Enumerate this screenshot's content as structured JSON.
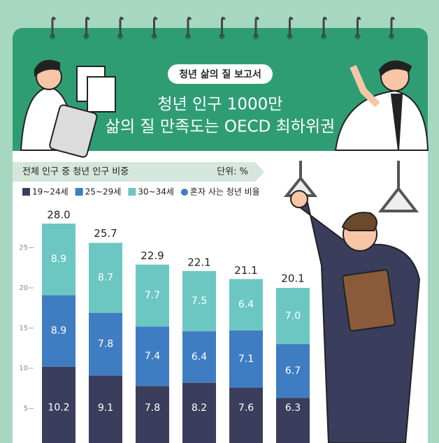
{
  "header": {
    "badge": "청년 삶의 질 보고서",
    "title_line1": "청년 인구 1000만",
    "title_line2": "삶의 질 만족도는 OECD 최하위권"
  },
  "chart_data": {
    "type": "stacked-bar",
    "subtitle": "전체 인구 중 청년 인구 비중",
    "unit": "단위: %",
    "series": [
      {
        "name": "19~24세",
        "color": "#3a3e5c",
        "values": [
          10.2,
          9.1,
          7.8,
          8.2,
          7.6,
          6.3
        ],
        "value_labels": [
          "10.2",
          "9.1",
          "7.8",
          "8.2",
          "7.6",
          "6.3"
        ]
      },
      {
        "name": "25~29세",
        "color": "#3f7dc2",
        "values": [
          8.9,
          7.8,
          7.4,
          6.4,
          7.1,
          6.7
        ],
        "value_labels": [
          "8.9",
          "7.8",
          "7.4",
          "6.4",
          "7.1",
          "6.7"
        ]
      },
      {
        "name": "30~34세",
        "color": "#6cc7c3",
        "values": [
          8.9,
          8.7,
          7.7,
          7.5,
          6.4,
          7.0
        ],
        "value_labels": [
          "8.9",
          "8.7",
          "7.7",
          "7.5",
          "6.4",
          "7.0"
        ]
      }
    ],
    "extra_legend": {
      "name": "혼자 사는 청년 비율",
      "color": "#3f7dc2"
    },
    "totals": [
      28.0,
      25.7,
      22.9,
      22.1,
      21.1,
      20.1
    ],
    "total_labels": [
      "28.0",
      "25.7",
      "22.9",
      "22.1",
      "21.1",
      "20.1"
    ],
    "ylim": [
      0,
      30
    ],
    "yticks": [
      5,
      10,
      15,
      20,
      25
    ]
  }
}
